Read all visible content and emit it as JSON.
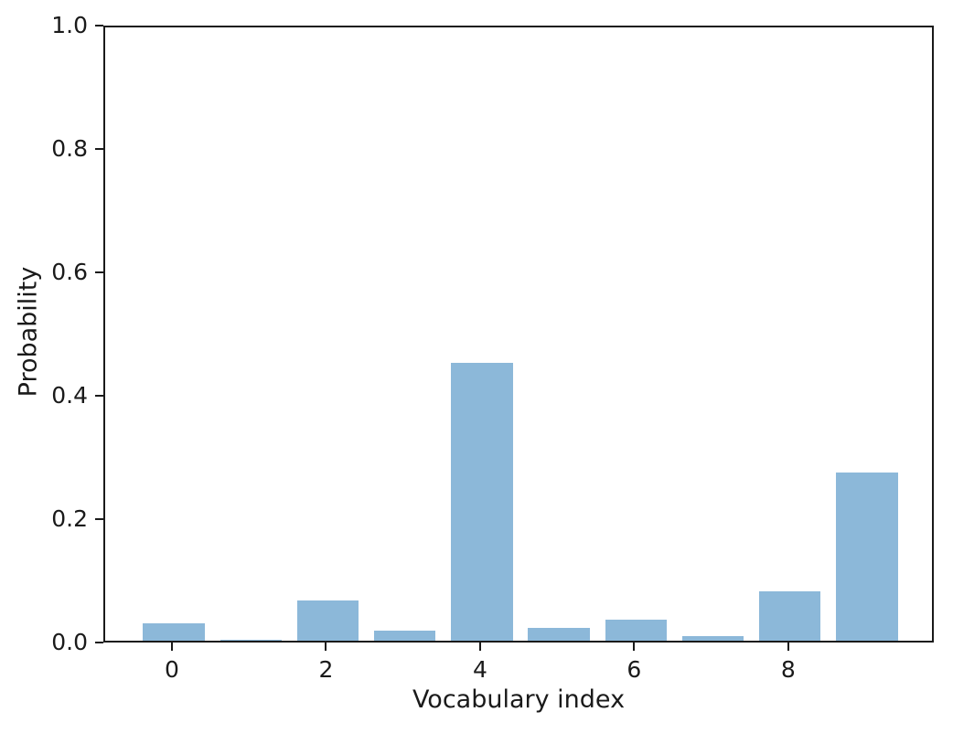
{
  "chart_data": {
    "type": "bar",
    "title": "",
    "xlabel": "Vocabulary index",
    "ylabel": "Probability",
    "x": [
      0,
      1,
      2,
      3,
      4,
      5,
      6,
      7,
      8,
      9
    ],
    "values": [
      0.028,
      0.002,
      0.065,
      0.016,
      0.45,
      0.021,
      0.034,
      0.007,
      0.08,
      0.272
    ],
    "xticks": [
      0,
      2,
      4,
      6,
      8
    ],
    "yticks": [
      "0.0",
      "0.2",
      "0.4",
      "0.6",
      "0.8",
      "1.0"
    ],
    "xlim": [
      -0.89,
      9.89
    ],
    "ylim": [
      0,
      1.0
    ],
    "bar_width": 0.8,
    "bar_color": "#8cb8d9",
    "spine_color": "#1a1a1a",
    "grid": false,
    "legend": null
  }
}
